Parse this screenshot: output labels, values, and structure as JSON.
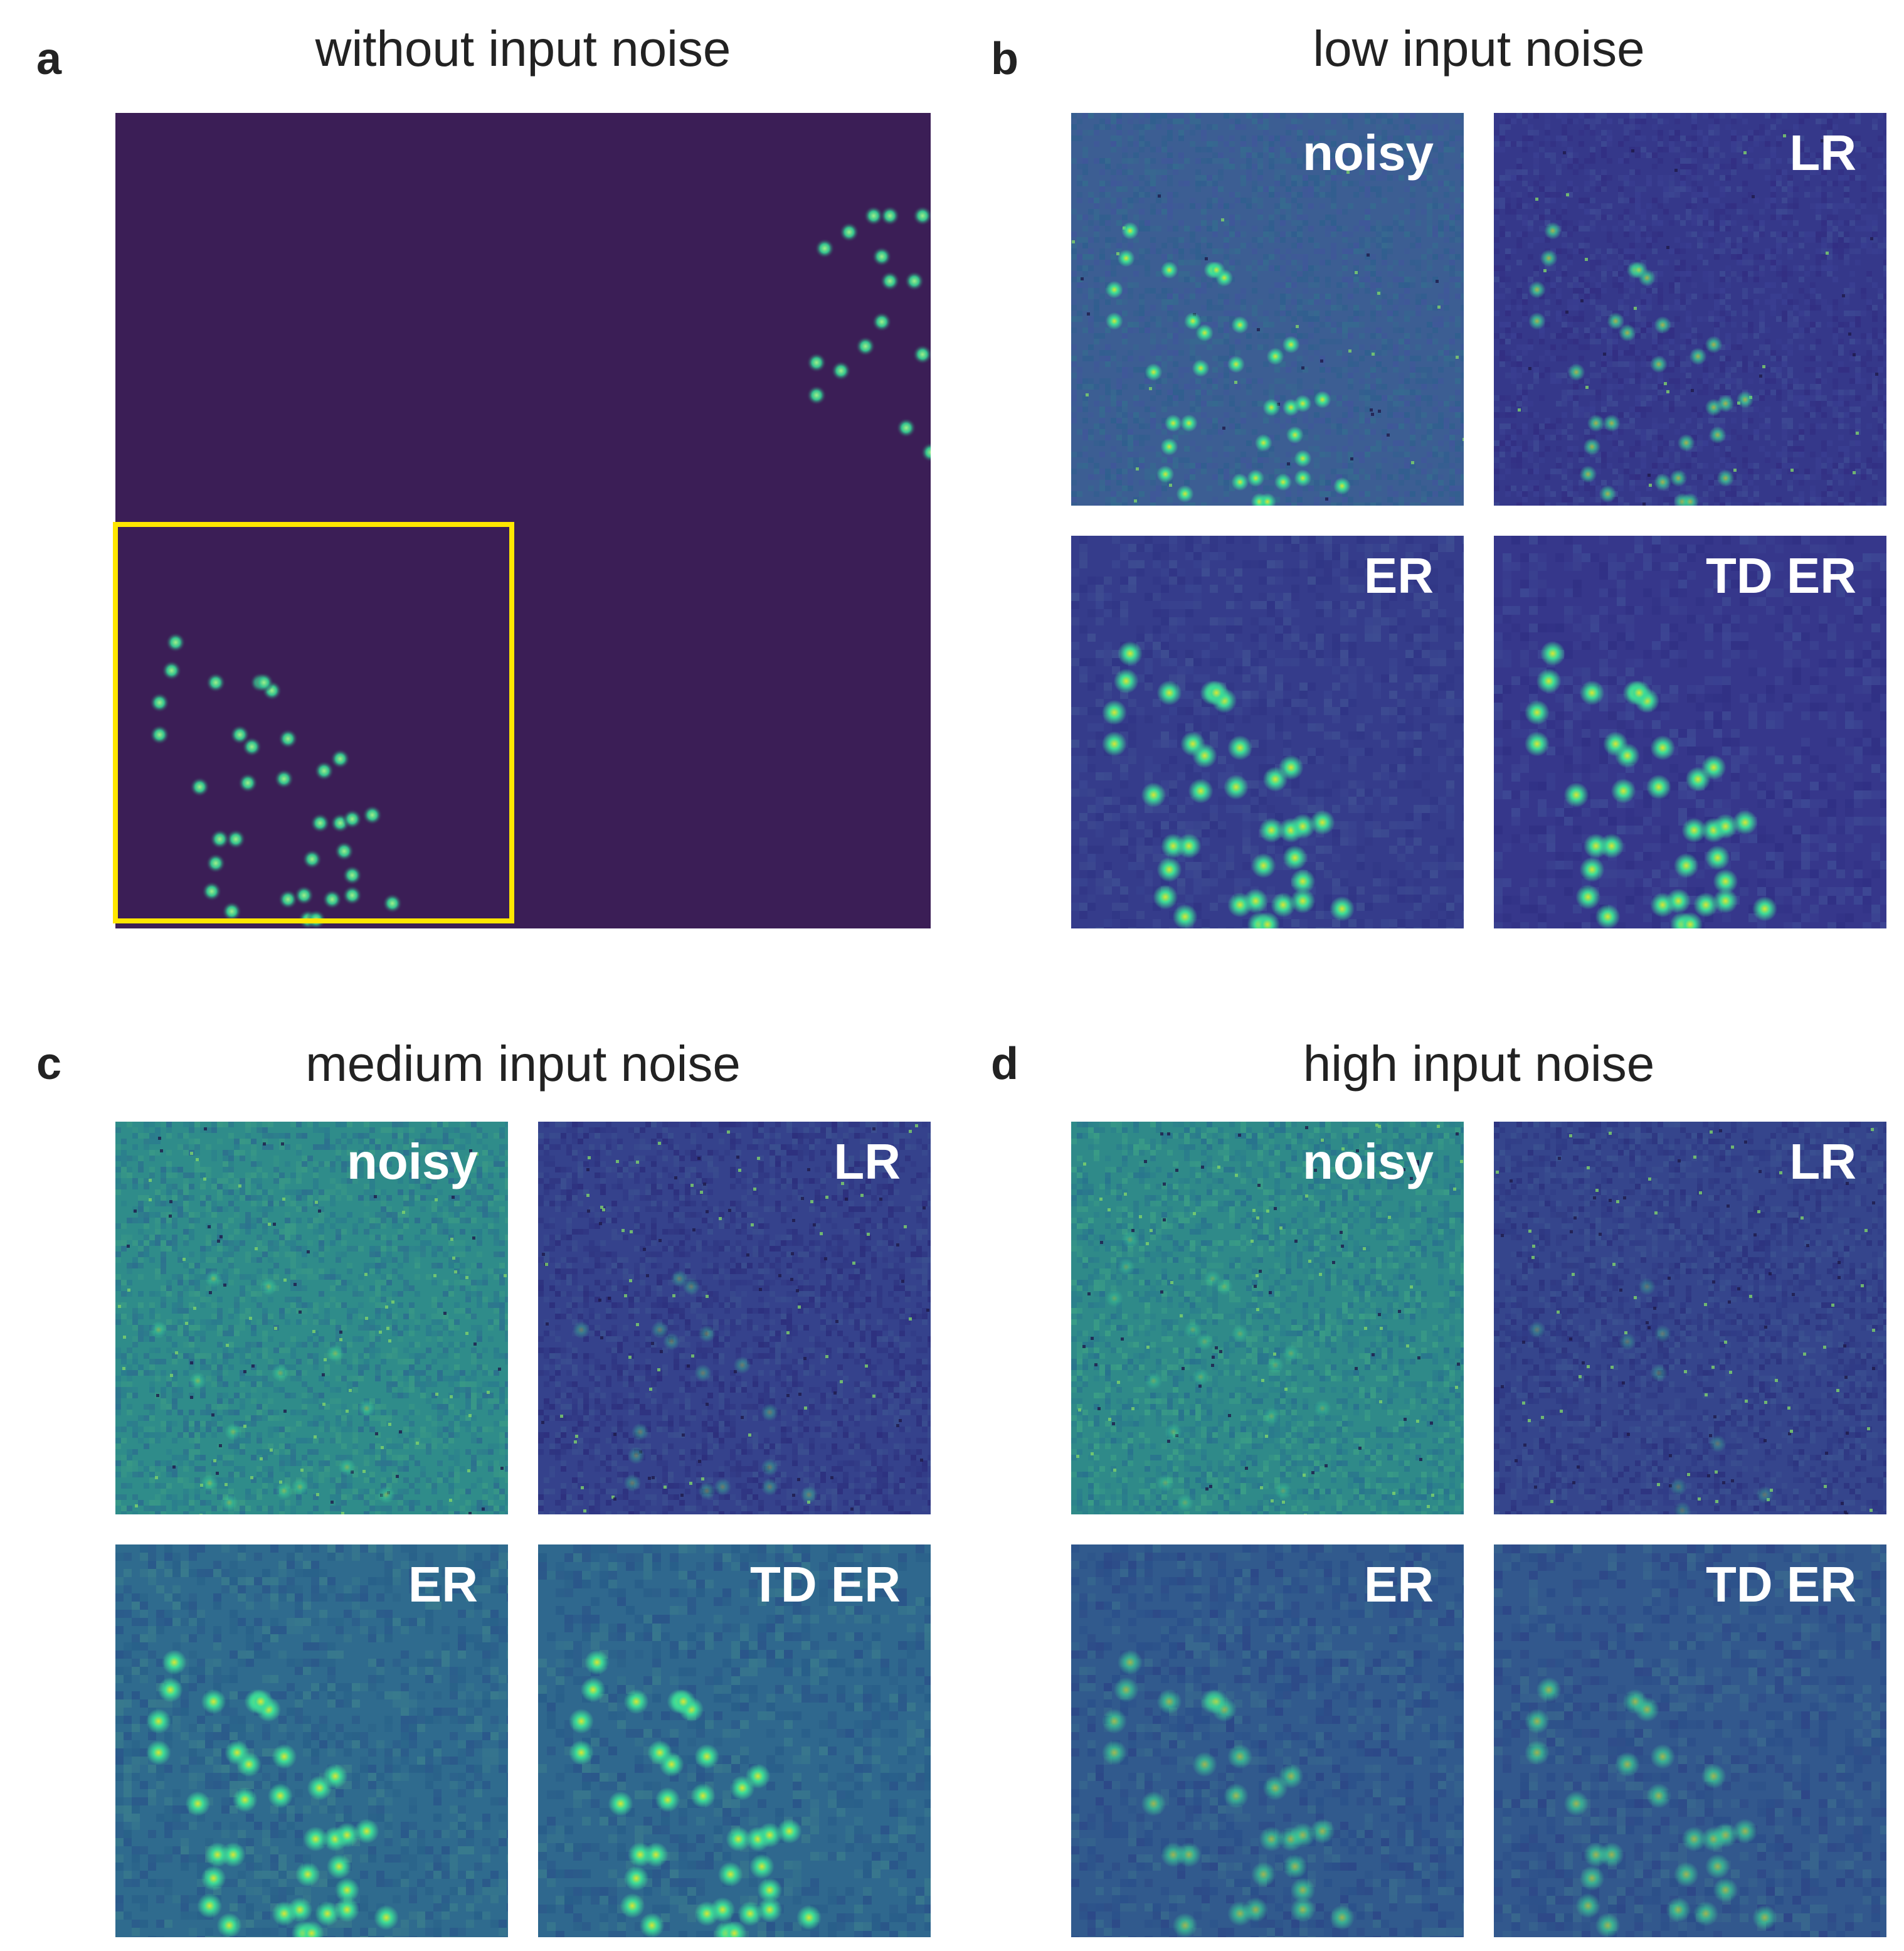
{
  "figure": {
    "panels": [
      {
        "letter": "a",
        "title": "without input noise"
      },
      {
        "letter": "b",
        "title": "low input noise"
      },
      {
        "letter": "c",
        "title": "medium input noise"
      },
      {
        "letter": "d",
        "title": "high input noise"
      }
    ],
    "tile_labels": {
      "noisy": "noisy",
      "lr": "LR",
      "er": "ER",
      "td_er": "TD ER"
    },
    "colors": {
      "background_dark": "#3b1e56",
      "highlight_box": "#ffe600",
      "blob": "#3ddc97",
      "blob_core": "#d8e534"
    }
  }
}
